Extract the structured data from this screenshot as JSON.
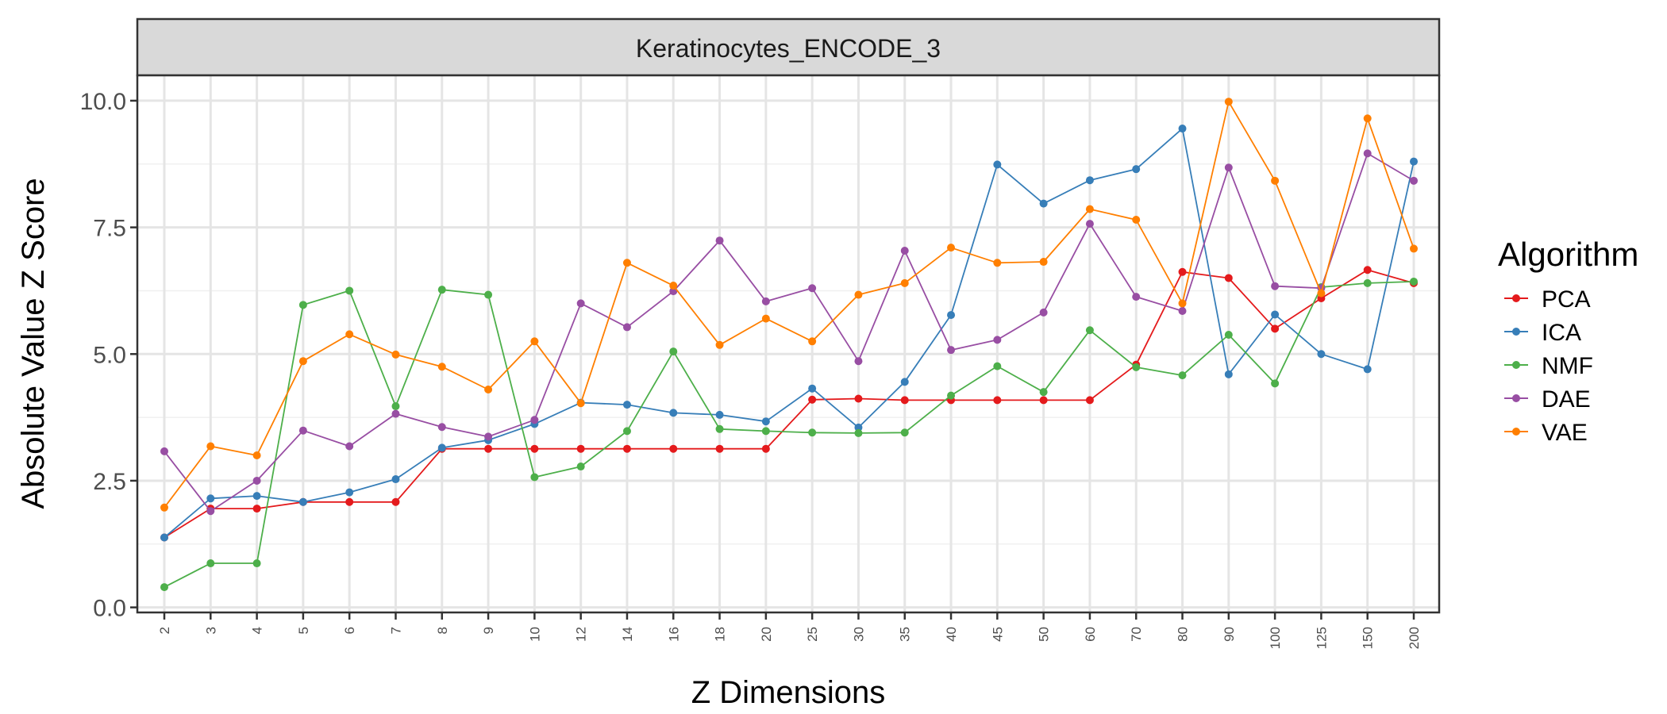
{
  "chart_data": {
    "type": "line",
    "facet_title": "Keratinocytes_ENCODE_3",
    "xlabel": "Z Dimensions",
    "ylabel": "Absolute Value Z Score",
    "categories": [
      "2",
      "3",
      "4",
      "5",
      "6",
      "7",
      "8",
      "9",
      "10",
      "12",
      "14",
      "16",
      "18",
      "20",
      "25",
      "30",
      "35",
      "40",
      "45",
      "50",
      "60",
      "70",
      "80",
      "90",
      "100",
      "125",
      "150",
      "200"
    ],
    "ylim": [
      -0.1,
      10.5
    ],
    "yticks": [
      "0.0",
      "2.5",
      "5.0",
      "7.5",
      "10.0"
    ],
    "ytick_values": [
      0,
      2.5,
      5,
      7.5,
      10
    ],
    "grid": true,
    "legend": {
      "title": "Algorithm",
      "position": "right"
    },
    "series": [
      {
        "name": "PCA",
        "color": "#e41a1c",
        "values": [
          1.38,
          1.95,
          1.95,
          2.08,
          2.08,
          2.08,
          3.13,
          3.13,
          3.13,
          3.13,
          3.13,
          3.13,
          3.13,
          3.13,
          4.1,
          4.12,
          4.09,
          4.09,
          4.09,
          4.09,
          4.09,
          4.79,
          6.62,
          6.5,
          5.5,
          6.1,
          6.66,
          6.4
        ]
      },
      {
        "name": "ICA",
        "color": "#377eb8",
        "values": [
          1.38,
          2.15,
          2.2,
          2.08,
          2.27,
          2.53,
          3.15,
          3.3,
          3.62,
          4.04,
          4.0,
          3.84,
          3.8,
          3.67,
          4.32,
          3.55,
          4.45,
          5.77,
          8.74,
          7.97,
          8.43,
          8.65,
          9.45,
          4.6,
          5.78,
          5.0,
          4.7,
          8.8
        ]
      },
      {
        "name": "NMF",
        "color": "#4daf4a",
        "values": [
          0.4,
          0.87,
          0.87,
          5.97,
          6.25,
          3.97,
          6.27,
          6.17,
          2.57,
          2.78,
          3.48,
          5.05,
          3.52,
          3.48,
          3.45,
          3.44,
          3.45,
          4.18,
          4.76,
          4.25,
          5.47,
          4.74,
          4.58,
          5.38,
          4.42,
          6.32,
          6.4,
          6.43
        ]
      },
      {
        "name": "DAE",
        "color": "#984ea3",
        "values": [
          3.08,
          1.9,
          2.5,
          3.49,
          3.18,
          3.82,
          3.56,
          3.37,
          3.7,
          6.0,
          5.53,
          6.24,
          7.24,
          6.04,
          6.3,
          4.86,
          7.04,
          5.08,
          5.28,
          5.82,
          7.57,
          6.13,
          5.85,
          8.68,
          6.34,
          6.3,
          8.96,
          8.42
        ]
      },
      {
        "name": "VAE",
        "color": "#ff7f00",
        "values": [
          1.97,
          3.18,
          3.0,
          4.86,
          5.39,
          4.99,
          4.75,
          4.3,
          5.25,
          4.03,
          6.8,
          6.35,
          5.18,
          5.7,
          5.25,
          6.17,
          6.4,
          7.1,
          6.8,
          6.82,
          7.86,
          7.65,
          6.0,
          9.98,
          8.42,
          6.2,
          9.65,
          7.08
        ]
      }
    ]
  }
}
